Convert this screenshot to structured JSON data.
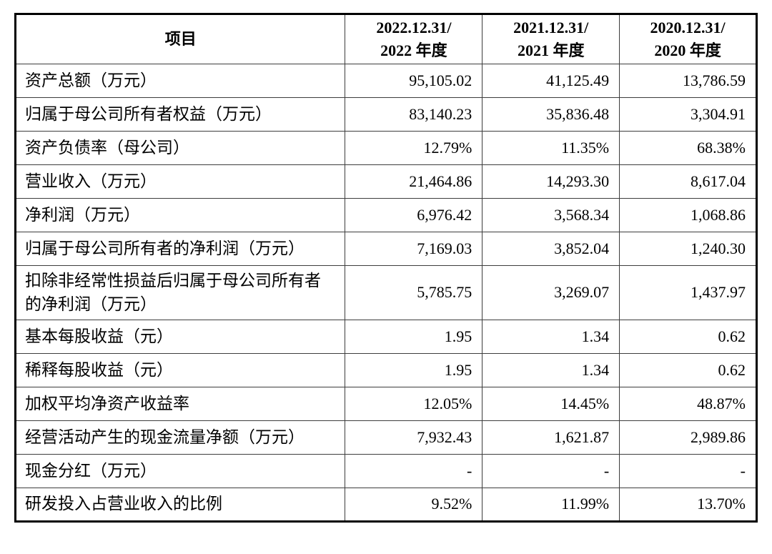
{
  "page": {
    "background_color": "#ffffff",
    "text_color": "#000000",
    "outer_border_color": "#000000",
    "grid_line_color": "#3d3d3d"
  },
  "table": {
    "header": {
      "item_label": "项目",
      "periods": [
        "2022.12.31/\n2022 年度",
        "2021.12.31/\n2021 年度",
        "2020.12.31/\n2020 年度"
      ]
    },
    "rows": [
      {
        "label": "资产总额（万元）",
        "values": [
          "95,105.02",
          "41,125.49",
          "13,786.59"
        ],
        "tall": false
      },
      {
        "label": "归属于母公司所有者权益（万元）",
        "values": [
          "83,140.23",
          "35,836.48",
          "3,304.91"
        ],
        "tall": false
      },
      {
        "label": "资产负债率（母公司）",
        "values": [
          "12.79%",
          "11.35%",
          "68.38%"
        ],
        "tall": false
      },
      {
        "label": "营业收入（万元）",
        "values": [
          "21,464.86",
          "14,293.30",
          "8,617.04"
        ],
        "tall": false
      },
      {
        "label": "净利润（万元）",
        "values": [
          "6,976.42",
          "3,568.34",
          "1,068.86"
        ],
        "tall": false
      },
      {
        "label": "归属于母公司所有者的净利润（万元）",
        "values": [
          "7,169.03",
          "3,852.04",
          "1,240.30"
        ],
        "tall": false
      },
      {
        "label": "扣除非经常性损益后归属于母公司所有者的净利润（万元）",
        "values": [
          "5,785.75",
          "3,269.07",
          "1,437.97"
        ],
        "tall": true
      },
      {
        "label": "基本每股收益（元）",
        "values": [
          "1.95",
          "1.34",
          "0.62"
        ],
        "tall": false
      },
      {
        "label": "稀释每股收益（元）",
        "values": [
          "1.95",
          "1.34",
          "0.62"
        ],
        "tall": false
      },
      {
        "label": "加权平均净资产收益率",
        "values": [
          "12.05%",
          "14.45%",
          "48.87%"
        ],
        "tall": false
      },
      {
        "label": "经营活动产生的现金流量净额（万元）",
        "values": [
          "7,932.43",
          "1,621.87",
          "2,989.86"
        ],
        "tall": false
      },
      {
        "label": "现金分红（万元）",
        "values": [
          "-",
          "-",
          "-"
        ],
        "tall": false
      },
      {
        "label": "研发投入占营业收入的比例",
        "values": [
          "9.52%",
          "11.99%",
          "13.70%"
        ],
        "tall": false
      }
    ]
  }
}
